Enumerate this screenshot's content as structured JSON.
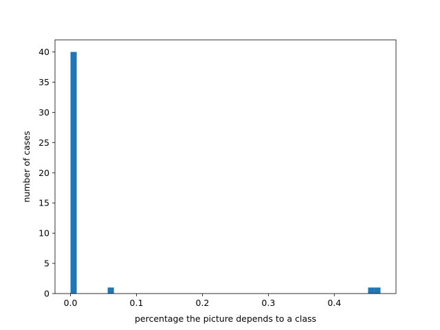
{
  "chart_data": {
    "type": "bar",
    "title": "",
    "xlabel": "percentage the picture depends to a class",
    "ylabel": "number of cases",
    "xlim": [
      -0.0235,
      0.4935
    ],
    "ylim": [
      0,
      42
    ],
    "x_ticks": [
      0.0,
      0.1,
      0.2,
      0.3,
      0.4
    ],
    "x_tick_labels": [
      "0.0",
      "0.1",
      "0.2",
      "0.3",
      "0.4"
    ],
    "y_ticks": [
      0,
      5,
      10,
      15,
      20,
      25,
      30,
      35,
      40
    ],
    "y_tick_labels": [
      "0",
      "5",
      "10",
      "15",
      "20",
      "25",
      "30",
      "35",
      "40"
    ],
    "bin_width": 0.0094,
    "bins": [
      {
        "x_start": 0.0,
        "value": 40
      },
      {
        "x_start": 0.0564,
        "value": 1
      },
      {
        "x_start": 0.4512,
        "value": 1
      },
      {
        "x_start": 0.4606,
        "value": 1
      }
    ],
    "bar_color": "#1f77b4",
    "grid": false,
    "legend": "none"
  }
}
